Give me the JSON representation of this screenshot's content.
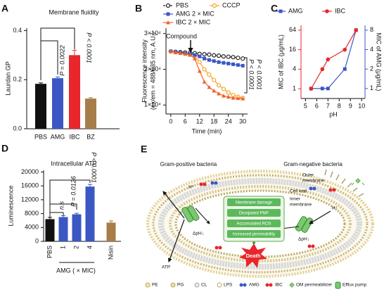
{
  "chart_data": [
    {
      "panel": "A",
      "type": "bar",
      "title": "Membrane fluidity",
      "y_label": "Laurdan GP",
      "categories": [
        "PBS",
        "AMG",
        "IBC",
        "BZ"
      ],
      "values": [
        0.183,
        0.206,
        0.3,
        0.123
      ],
      "errors": [
        0.004,
        0.005,
        0.02,
        0.004
      ],
      "colors": [
        "#111111",
        "#3b57c4",
        "#e8262b",
        "#a77d4a"
      ],
      "ylim": [
        0,
        0.41
      ],
      "yticks": [
        {
          "value": 0,
          "label": "0.0"
        },
        {
          "value": 0.2,
          "label": "0.2"
        },
        {
          "value": 0.4,
          "label": "0.4"
        }
      ],
      "annotations": [
        "P = 0.0022",
        "P < 0.0001"
      ]
    },
    {
      "panel": "B",
      "type": "line",
      "x_label": "Time (min)",
      "y_label": [
        "Fluorescence intensity",
        "(ex/em = 488/635 nm, A.U.)"
      ],
      "x": [
        0,
        2,
        4,
        6,
        8,
        10,
        12,
        14,
        16,
        18,
        20,
        22,
        24,
        26,
        28,
        30
      ],
      "series": [
        {
          "name": "PBS",
          "color": "#222222",
          "marker": "circle-open",
          "line_style": "dashed",
          "values": [
            25000,
            24900,
            24800,
            24700,
            24600,
            24500,
            24300,
            24200,
            24100,
            23900,
            23800,
            23600,
            23500,
            23400,
            23200,
            23000
          ]
        },
        {
          "name": "CCCP",
          "color": "#f5a623",
          "marker": "circle-open",
          "values": [
            25000,
            24800,
            24600,
            24400,
            24200,
            23800,
            22000,
            20000,
            18500,
            17000,
            15500,
            14500,
            13500,
            12800,
            12300,
            12000
          ]
        },
        {
          "name": "AMG 2 × MIC",
          "color": "#3b57c4",
          "marker": "square",
          "values": [
            25000,
            24800,
            24600,
            24400,
            24200,
            24000,
            23600,
            23000,
            22600,
            22300,
            22000,
            21800,
            21600,
            21400,
            21200,
            21000
          ]
        },
        {
          "name": "IBC 2 × MIC",
          "color": "#f0622a",
          "marker": "triangle",
          "values": [
            25000,
            24700,
            24500,
            24300,
            24000,
            23000,
            19500,
            16500,
            15000,
            14000,
            13200,
            12600,
            12300,
            12000,
            11900,
            11800
          ]
        }
      ],
      "xlim": [
        -2,
        32
      ],
      "xticks": [
        0,
        6,
        12,
        18,
        24,
        30
      ],
      "ylim": [
        7500,
        31500
      ],
      "yticks": [
        {
          "value": 10000,
          "label": "1×10⁴"
        },
        {
          "value": 20000,
          "label": "2×10⁴"
        },
        {
          "value": 30000,
          "label": "3×10⁴"
        }
      ],
      "annotations": [
        "Compound",
        "P < 0.0001",
        "P < 0.0001"
      ]
    },
    {
      "panel": "C",
      "type": "line",
      "log_scale": true,
      "x_label": "pH",
      "y_label": "MIC of IBC (μg/mL)",
      "y2_label": "MIC of AMG (μg/mL)",
      "x": [
        5.5,
        6.5,
        7,
        8.5,
        9.5
      ],
      "series": [
        {
          "name": "AMG",
          "color": "#3b57c4",
          "marker": "square",
          "axis": "y2",
          "values": [
            1,
            1,
            1,
            2,
            8
          ]
        },
        {
          "name": "IBC",
          "color": "#e8262b",
          "marker": "circle",
          "values": [
            1,
            4,
            8,
            16,
            64
          ]
        }
      ],
      "xlim": [
        4.6,
        10.3
      ],
      "xticks": [
        5,
        6,
        7,
        8,
        9,
        10
      ],
      "ylim": [
        0.5,
        90
      ],
      "yticks": [
        1,
        4,
        16,
        64
      ],
      "y2lim": [
        0.7,
        9.5
      ],
      "y2ticks": [
        1,
        2,
        4,
        8
      ]
    },
    {
      "panel": "D",
      "type": "bar",
      "title": "Intracellular ATP",
      "y_label": "Luminescence",
      "x_label": "AMG ( × MIC)",
      "categories": [
        "PBS",
        "1",
        "2",
        "4",
        "Nisin"
      ],
      "values": [
        6400,
        7000,
        7800,
        15800,
        5400
      ],
      "errors": [
        500,
        400,
        300,
        600,
        500
      ],
      "colors": [
        "#111111",
        "#3b57c4",
        "#3b57c4",
        "#3b57c4",
        "#a77d4a"
      ],
      "ylim": [
        0,
        20500
      ],
      "yticks": [
        0,
        4000,
        8000,
        12000,
        16000,
        20000
      ],
      "annotations": [
        "n.s",
        "P = 0.0126",
        "P < 0.0001"
      ]
    }
  ],
  "diagram": {
    "panel": "E",
    "left_title": "Gram-positive bacteria",
    "right_title": "Gram-negative bacteria",
    "outer_membrane": [
      "Outer",
      "membrane"
    ],
    "cell_wall": "Cell wall",
    "inner_membrane": [
      "Inner",
      "membrane"
    ],
    "proton": [
      "H⁺",
      "H⁺"
    ],
    "ph_gradient": [
      "ΔpH↓",
      "ΔpH↓"
    ],
    "pathway": [
      "Membrane damage",
      "Dissipated PMF",
      "Accumulated ROS",
      "Increased permeability"
    ],
    "outcome": "Death",
    "atp": "ATP",
    "legend": [
      "PE",
      "PG",
      "CL",
      "LPS",
      "AMG",
      "IBC",
      "OM permeabilizer",
      "Efflux pump"
    ]
  }
}
